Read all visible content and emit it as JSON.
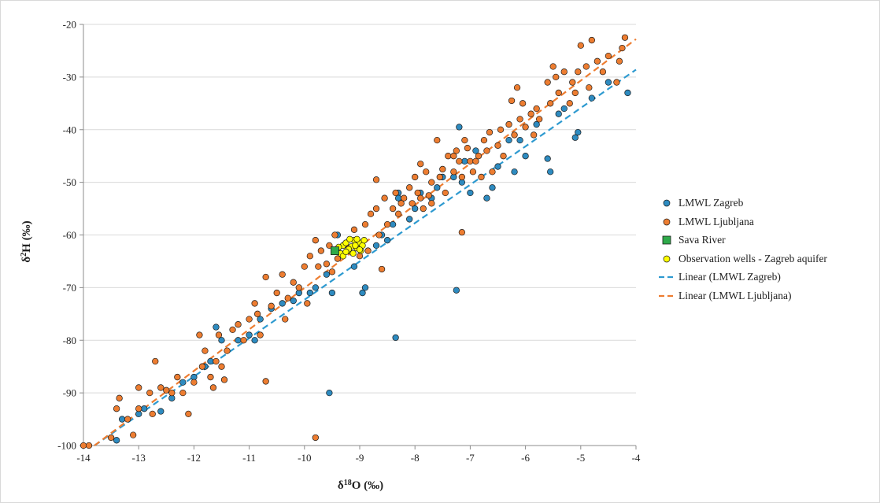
{
  "chart_data": {
    "type": "scatter",
    "title": "",
    "xlabel": "δ18O (‰)",
    "ylabel": "δ2H (‰)",
    "xlim": [
      -14,
      -4
    ],
    "ylim": [
      -100,
      -20
    ],
    "xticks": [
      -14,
      -13,
      -12,
      -11,
      -10,
      -9,
      -8,
      -7,
      -6,
      -5,
      -4
    ],
    "yticks": [
      -100,
      -90,
      -80,
      -70,
      -60,
      -50,
      -40,
      -30,
      -20
    ],
    "grid": "horizontal",
    "legend_position": "right",
    "series": [
      {
        "name": "LMWL Zagreb",
        "kind": "points",
        "marker": "circle",
        "color": "#2E8BC0",
        "points": [
          [
            -13.4,
            -99
          ],
          [
            -13.3,
            -95
          ],
          [
            -13.0,
            -94
          ],
          [
            -12.9,
            -93
          ],
          [
            -12.6,
            -93.5
          ],
          [
            -12.4,
            -91
          ],
          [
            -12.2,
            -88
          ],
          [
            -12.0,
            -87
          ],
          [
            -11.8,
            -85
          ],
          [
            -11.7,
            -84
          ],
          [
            -11.6,
            -77.5
          ],
          [
            -11.5,
            -80
          ],
          [
            -11.2,
            -80
          ],
          [
            -11.0,
            -79
          ],
          [
            -10.9,
            -80
          ],
          [
            -10.8,
            -76
          ],
          [
            -10.6,
            -74
          ],
          [
            -10.4,
            -73
          ],
          [
            -10.2,
            -72.5
          ],
          [
            -10.1,
            -71
          ],
          [
            -9.9,
            -71
          ],
          [
            -9.8,
            -70
          ],
          [
            -9.6,
            -67.5
          ],
          [
            -9.5,
            -71
          ],
          [
            -9.4,
            -63
          ],
          [
            -9.4,
            -60
          ],
          [
            -9.3,
            -62
          ],
          [
            -9.1,
            -66
          ],
          [
            -8.95,
            -71
          ],
          [
            -8.9,
            -70
          ],
          [
            -8.7,
            -62
          ],
          [
            -8.6,
            -60
          ],
          [
            -8.5,
            -61
          ],
          [
            -8.4,
            -58
          ],
          [
            -8.3,
            -52
          ],
          [
            -8.3,
            -53
          ],
          [
            -8.1,
            -57
          ],
          [
            -8.0,
            -55
          ],
          [
            -7.9,
            -52
          ],
          [
            -7.7,
            -53
          ],
          [
            -7.6,
            -51
          ],
          [
            -7.5,
            -49
          ],
          [
            -7.3,
            -49
          ],
          [
            -7.2,
            -39.5
          ],
          [
            -7.1,
            -46
          ],
          [
            -7.0,
            -52
          ],
          [
            -6.9,
            -44
          ],
          [
            -6.7,
            -53
          ],
          [
            -6.6,
            -51
          ],
          [
            -6.5,
            -47
          ],
          [
            -6.3,
            -42
          ],
          [
            -6.2,
            -48
          ],
          [
            -6.1,
            -42
          ],
          [
            -6.0,
            -45
          ],
          [
            -5.8,
            -39
          ],
          [
            -5.6,
            -45.5
          ],
          [
            -5.55,
            -48
          ],
          [
            -5.4,
            -37
          ],
          [
            -5.3,
            -36
          ],
          [
            -5.1,
            -41.5
          ],
          [
            -5.05,
            -40.5
          ],
          [
            -4.8,
            -34
          ],
          [
            -4.5,
            -31
          ],
          [
            -4.15,
            -33
          ],
          [
            -9.55,
            -90
          ],
          [
            -8.35,
            -79.5
          ],
          [
            -7.25,
            -70.5
          ],
          [
            -7.15,
            -50
          ]
        ]
      },
      {
        "name": "LMWL Ljubljana",
        "kind": "points",
        "marker": "circle",
        "color": "#ED7D31",
        "points": [
          [
            -14.0,
            -100
          ],
          [
            -13.9,
            -100
          ],
          [
            -13.5,
            -98.5
          ],
          [
            -13.4,
            -93
          ],
          [
            -13.35,
            -91
          ],
          [
            -13.2,
            -95
          ],
          [
            -13.1,
            -98
          ],
          [
            -13.0,
            -93
          ],
          [
            -13.0,
            -89
          ],
          [
            -12.8,
            -90
          ],
          [
            -12.75,
            -94
          ],
          [
            -12.7,
            -84
          ],
          [
            -12.6,
            -89
          ],
          [
            -12.5,
            -89.5
          ],
          [
            -12.4,
            -90
          ],
          [
            -12.3,
            -87
          ],
          [
            -12.2,
            -90
          ],
          [
            -12.1,
            -94
          ],
          [
            -12.0,
            -88
          ],
          [
            -11.9,
            -79
          ],
          [
            -11.85,
            -85
          ],
          [
            -11.8,
            -82
          ],
          [
            -11.7,
            -87
          ],
          [
            -11.65,
            -89
          ],
          [
            -11.6,
            -84
          ],
          [
            -11.55,
            -79
          ],
          [
            -11.5,
            -85
          ],
          [
            -11.45,
            -87.5
          ],
          [
            -11.4,
            -82
          ],
          [
            -11.3,
            -78
          ],
          [
            -11.2,
            -77
          ],
          [
            -11.1,
            -80
          ],
          [
            -11.0,
            -76
          ],
          [
            -10.9,
            -73
          ],
          [
            -10.85,
            -75
          ],
          [
            -10.8,
            -79
          ],
          [
            -10.7,
            -68
          ],
          [
            -10.7,
            -87.8
          ],
          [
            -10.6,
            -73.5
          ],
          [
            -10.5,
            -71
          ],
          [
            -10.4,
            -67.5
          ],
          [
            -10.35,
            -76
          ],
          [
            -10.3,
            -72
          ],
          [
            -10.2,
            -69
          ],
          [
            -10.1,
            -70
          ],
          [
            -10.0,
            -66
          ],
          [
            -9.95,
            -73
          ],
          [
            -9.9,
            -64
          ],
          [
            -9.8,
            -61
          ],
          [
            -9.75,
            -66
          ],
          [
            -9.7,
            -63
          ],
          [
            -9.6,
            -65.5
          ],
          [
            -9.55,
            -62
          ],
          [
            -9.5,
            -67
          ],
          [
            -9.45,
            -60
          ],
          [
            -9.4,
            -64.5
          ],
          [
            -9.3,
            -62
          ],
          [
            -9.2,
            -62.5
          ],
          [
            -9.1,
            -59
          ],
          [
            -9.0,
            -64
          ],
          [
            -8.9,
            -58
          ],
          [
            -8.85,
            -63
          ],
          [
            -8.8,
            -56
          ],
          [
            -8.7,
            -55
          ],
          [
            -8.65,
            -60
          ],
          [
            -8.6,
            -66.5
          ],
          [
            -8.55,
            -53
          ],
          [
            -8.5,
            -58
          ],
          [
            -8.4,
            -55
          ],
          [
            -8.35,
            -52
          ],
          [
            -8.3,
            -56
          ],
          [
            -8.2,
            -53
          ],
          [
            -8.1,
            -51
          ],
          [
            -8.05,
            -54
          ],
          [
            -8.0,
            -49
          ],
          [
            -7.95,
            -52
          ],
          [
            -7.9,
            -46.5
          ],
          [
            -7.85,
            -55
          ],
          [
            -7.8,
            -48
          ],
          [
            -7.75,
            -52.5
          ],
          [
            -7.7,
            -50
          ],
          [
            -7.6,
            -42
          ],
          [
            -7.55,
            -49
          ],
          [
            -7.5,
            -47.5
          ],
          [
            -7.45,
            -52
          ],
          [
            -7.4,
            -45
          ],
          [
            -7.3,
            -48
          ],
          [
            -7.25,
            -44
          ],
          [
            -7.2,
            -46
          ],
          [
            -7.15,
            -49
          ],
          [
            -7.1,
            -42
          ],
          [
            -7.05,
            -43.5
          ],
          [
            -7.0,
            -46
          ],
          [
            -6.95,
            -48
          ],
          [
            -6.9,
            -46
          ],
          [
            -6.85,
            -45
          ],
          [
            -6.8,
            -49
          ],
          [
            -6.75,
            -42
          ],
          [
            -6.7,
            -44
          ],
          [
            -6.65,
            -40.5
          ],
          [
            -6.6,
            -48
          ],
          [
            -6.5,
            -43
          ],
          [
            -6.45,
            -40
          ],
          [
            -6.4,
            -45
          ],
          [
            -6.3,
            -39
          ],
          [
            -6.25,
            -34.5
          ],
          [
            -6.2,
            -41
          ],
          [
            -6.15,
            -32
          ],
          [
            -6.1,
            -38
          ],
          [
            -6.05,
            -35
          ],
          [
            -6.0,
            -39.5
          ],
          [
            -5.9,
            -37
          ],
          [
            -5.85,
            -41
          ],
          [
            -5.8,
            -36
          ],
          [
            -5.75,
            -38
          ],
          [
            -5.6,
            -31
          ],
          [
            -5.55,
            -35
          ],
          [
            -5.5,
            -28
          ],
          [
            -5.45,
            -30
          ],
          [
            -5.4,
            -33
          ],
          [
            -5.3,
            -29
          ],
          [
            -5.2,
            -35
          ],
          [
            -5.15,
            -31
          ],
          [
            -5.1,
            -33
          ],
          [
            -5.05,
            -29
          ],
          [
            -5.0,
            -24
          ],
          [
            -4.9,
            -28
          ],
          [
            -4.85,
            -32
          ],
          [
            -4.8,
            -23
          ],
          [
            -4.7,
            -27
          ],
          [
            -4.6,
            -29
          ],
          [
            -4.5,
            -26
          ],
          [
            -4.35,
            -31
          ],
          [
            -4.3,
            -27
          ],
          [
            -4.2,
            -22.5
          ],
          [
            -4.25,
            -24.5
          ],
          [
            -7.15,
            -59.5
          ],
          [
            -9.8,
            -98.5
          ],
          [
            -8.7,
            -49.5
          ],
          [
            -7.3,
            -45
          ],
          [
            -7.9,
            -53
          ],
          [
            -7.7,
            -54
          ],
          [
            -8.25,
            -54
          ]
        ]
      },
      {
        "name": "Sava River",
        "kind": "points",
        "marker": "square",
        "color": "#2EAA4A",
        "points": [
          [
            -9.45,
            -63
          ]
        ]
      },
      {
        "name": "Observation wells - Zagreb aquifer",
        "kind": "points",
        "marker": "circle",
        "color": "#FFFF00",
        "points": [
          [
            -9.35,
            -63.5
          ],
          [
            -9.3,
            -62
          ],
          [
            -9.25,
            -61.5
          ],
          [
            -9.2,
            -63
          ],
          [
            -9.15,
            -62.2
          ],
          [
            -9.1,
            -61
          ],
          [
            -9.05,
            -62.5
          ],
          [
            -9.0,
            -61.5
          ],
          [
            -8.95,
            -62
          ],
          [
            -9.3,
            -64
          ],
          [
            -9.2,
            -62.7
          ],
          [
            -9.12,
            -63.5
          ],
          [
            -9.05,
            -60.8
          ],
          [
            -8.98,
            -63
          ],
          [
            -9.25,
            -63.2
          ],
          [
            -9.18,
            -60.8
          ],
          [
            -9.08,
            -62
          ],
          [
            -9.0,
            -62.8
          ],
          [
            -9.38,
            -62.3
          ],
          [
            -8.92,
            -61
          ]
        ]
      },
      {
        "name": "Linear (LMWL Zagreb)",
        "kind": "line",
        "style": "dashed",
        "color": "#2E9AD0",
        "x": [
          -13.8,
          -4
        ],
        "y": [
          -100,
          -28.6
        ]
      },
      {
        "name": "Linear (LMWL Ljubljana)",
        "kind": "line",
        "style": "dashed",
        "color": "#ED7D31",
        "x": [
          -13.8,
          -4
        ],
        "y": [
          -100,
          -22.8
        ]
      }
    ]
  }
}
